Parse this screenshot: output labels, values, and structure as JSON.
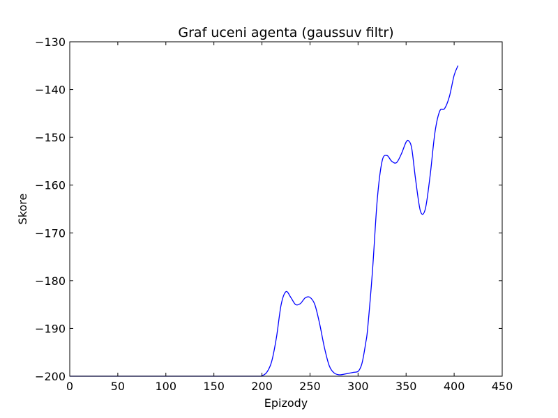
{
  "chart_data": {
    "type": "line",
    "title": "Graf uceni agenta (gaussuv filtr)",
    "xlabel": "Epizody",
    "ylabel": "Skore",
    "xlim": [
      0,
      450
    ],
    "ylim": [
      -200,
      -130
    ],
    "xticks": [
      0,
      50,
      100,
      150,
      200,
      250,
      300,
      350,
      400,
      450
    ],
    "yticks": [
      -200,
      -190,
      -180,
      -170,
      -160,
      -150,
      -140,
      -130
    ],
    "grid": false,
    "series": [
      {
        "color": "#0000ff",
        "x": [
          0,
          50,
          100,
          150,
          195,
          200,
          205,
          210,
          215,
          220,
          225,
          230,
          235,
          240,
          245,
          250,
          255,
          260,
          265,
          270,
          275,
          280,
          285,
          290,
          295,
          300,
          303,
          305,
          308,
          310,
          315,
          320,
          325,
          330,
          335,
          340,
          345,
          350,
          353,
          356,
          360,
          365,
          370,
          375,
          380,
          385,
          390,
          395,
          400,
          404
        ],
        "y": [
          -200,
          -200,
          -200,
          -200,
          -200,
          -199.9,
          -199.2,
          -197,
          -192,
          -185,
          -182.3,
          -183.5,
          -185,
          -184.8,
          -183.6,
          -183.5,
          -185,
          -189,
          -194,
          -197.8,
          -199.3,
          -199.7,
          -199.6,
          -199.4,
          -199.2,
          -199,
          -198,
          -196.5,
          -193,
          -190,
          -178,
          -163,
          -155,
          -153.8,
          -155,
          -155.3,
          -153.5,
          -151,
          -150.8,
          -152.5,
          -159,
          -165.5,
          -165,
          -158,
          -149,
          -144.5,
          -144,
          -141.5,
          -137,
          -135
        ]
      }
    ]
  }
}
